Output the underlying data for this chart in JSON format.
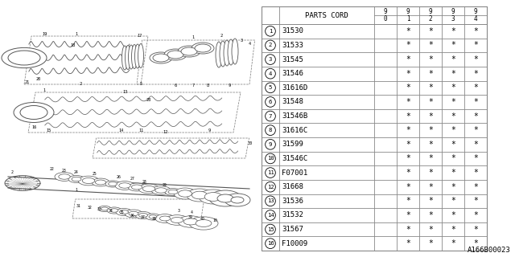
{
  "bg_color": "#ffffff",
  "parts": [
    [
      "1",
      "31530"
    ],
    [
      "2",
      "31533"
    ],
    [
      "3",
      "31545"
    ],
    [
      "4",
      "31546"
    ],
    [
      "5",
      "31616D"
    ],
    [
      "6",
      "31548"
    ],
    [
      "7",
      "31546B"
    ],
    [
      "8",
      "31616C"
    ],
    [
      "9",
      "31599"
    ],
    [
      "10",
      "31546C"
    ],
    [
      "11",
      "F07001"
    ],
    [
      "12",
      "31668"
    ],
    [
      "13",
      "31536"
    ],
    [
      "14",
      "31532"
    ],
    [
      "15",
      "31567"
    ],
    [
      "16",
      "F10009"
    ]
  ],
  "watermark": "A166B00023",
  "line_color": "#555555",
  "table_line_color": "#888888",
  "font_size_table": 6.5,
  "font_size_header": 6.5,
  "font_size_watermark": 6.5,
  "year_cols": [
    "9\n0",
    "9\n1",
    "9\n2",
    "9\n3",
    "9\n4"
  ]
}
